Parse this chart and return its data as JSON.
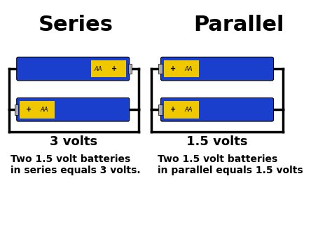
{
  "bg_color": "#ffffff",
  "title_series": "Series",
  "title_parallel": "Parallel",
  "title_fontsize": 22,
  "title_fontweight": "bold",
  "battery_blue": "#1a3fcc",
  "battery_yellow": "#f0c800",
  "wire_color": "#000000",
  "wire_lw": 2.5,
  "text_volts_series": "3 volts",
  "text_volts_parallel": "1.5 volts",
  "text_volts_fontsize": 13,
  "text_volts_fontweight": "bold",
  "caption_series": "Two 1.5 volt batteries\nin series equals 3 volts.",
  "caption_parallel": "Two 1.5 volt batteries\nin parallel equals 1.5 volts",
  "caption_fontsize": 10,
  "caption_fontweight": "bold",
  "aa_label": "AA",
  "plus_label": "+",
  "label_fontsize": 7
}
